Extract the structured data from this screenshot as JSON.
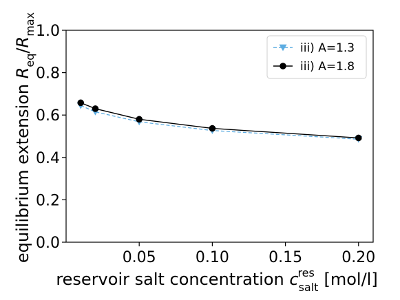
{
  "chart_data": {
    "type": "line",
    "xlabel": {
      "main": "reservoir salt concentration ",
      "var": "c",
      "sub": "salt",
      "sup": "res",
      "unit": " [mol/l]"
    },
    "ylabel": {
      "main": "equilibrium extension ",
      "var1": "R",
      "sub1": "eq",
      "slash": "/",
      "var2": "R",
      "sub2": "max"
    },
    "xlim": [
      0.0,
      0.21
    ],
    "ylim": [
      0.0,
      1.0
    ],
    "xticks": [
      0.05,
      0.1,
      0.15,
      0.2
    ],
    "xtick_labels": [
      "0.05",
      "0.10",
      "0.15",
      "0.20"
    ],
    "yticks": [
      0.0,
      0.2,
      0.4,
      0.6,
      0.8,
      1.0
    ],
    "ytick_labels": [
      "0.0",
      "0.2",
      "0.4",
      "0.6",
      "0.8",
      "1.0"
    ],
    "grid": false,
    "legend_position": "top-right",
    "series": [
      {
        "name": "iii) A=1.3",
        "color": "#5dade2",
        "line_style": "dashed",
        "marker": "triangle-down",
        "x": [
          0.01,
          0.02,
          0.05,
          0.1,
          0.2
        ],
        "y": [
          0.645,
          0.615,
          0.568,
          0.527,
          0.486
        ]
      },
      {
        "name": "iii) A=1.8",
        "color": "#000000",
        "line_style": "solid",
        "marker": "circle",
        "x": [
          0.01,
          0.02,
          0.05,
          0.1,
          0.2
        ],
        "y": [
          0.658,
          0.63,
          0.58,
          0.537,
          0.492
        ]
      }
    ]
  }
}
